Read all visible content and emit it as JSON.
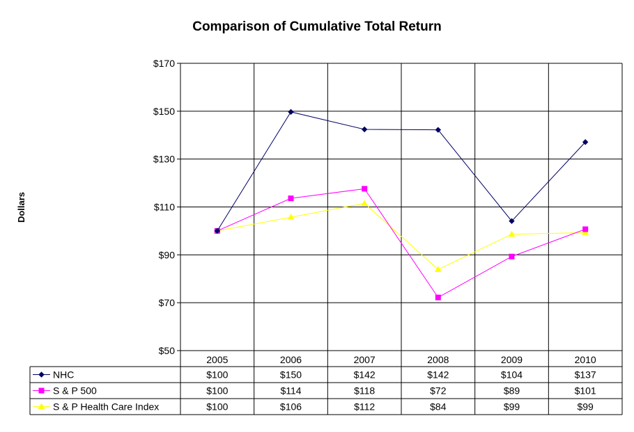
{
  "chart_data": {
    "type": "line",
    "title": "Comparison of Cumulative Total Return",
    "ylabel": "Dollars",
    "xlabel": "",
    "ylim": [
      50,
      170
    ],
    "y_ticks": [
      50,
      70,
      90,
      110,
      130,
      150,
      170
    ],
    "y_tick_labels": [
      "$50",
      "$70",
      "$90",
      "$110",
      "$130",
      "$150",
      "$170"
    ],
    "grid": true,
    "legend_position": "table-below",
    "categories": [
      "2005",
      "2006",
      "2007",
      "2008",
      "2009",
      "2010"
    ],
    "series": [
      {
        "name": "NHC",
        "color": "#000066",
        "marker": "diamond",
        "values": [
          100,
          149.7,
          142.4,
          142.2,
          104.1,
          137.1
        ],
        "labels": [
          "$100",
          "$150",
          "$142",
          "$142",
          "$104",
          "$137"
        ]
      },
      {
        "name": "S & P 500",
        "color": "#ff00ff",
        "marker": "square",
        "values": [
          100,
          113.6,
          117.6,
          72.2,
          89.3,
          100.7
        ],
        "labels": [
          "$100",
          "$114",
          "$118",
          "$72",
          "$89",
          "$101"
        ]
      },
      {
        "name": "S & P Health Care Index",
        "color": "#ffff00",
        "marker": "triangle",
        "values": [
          100,
          105.7,
          111.5,
          83.9,
          98.6,
          99.3
        ],
        "labels": [
          "$100",
          "$106",
          "$112",
          "$84",
          "$99",
          "$99"
        ]
      }
    ]
  }
}
